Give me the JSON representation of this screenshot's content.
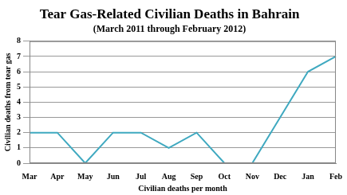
{
  "chart_data": {
    "type": "line",
    "title": "Tear Gas-Related Civilian Deaths in Bahrain",
    "subtitle": "(March 2011 through February 2012)",
    "x_label": "Civilian deaths per month",
    "y_label": "Civilian deaths from tear gas",
    "categories": [
      "Mar",
      "Apr",
      "May",
      "Jun",
      "Jul",
      "Aug",
      "Sep",
      "Oct",
      "Nov",
      "Dec",
      "Jan",
      "Feb"
    ],
    "values": [
      2,
      2,
      0,
      2,
      2,
      1,
      2,
      0,
      0,
      3,
      6,
      7
    ],
    "color": "#3fa9c0",
    "ylim": [
      0,
      8
    ],
    "yticks": [
      0,
      1,
      2,
      3,
      4,
      5,
      6,
      7,
      8
    ],
    "grid": true
  }
}
